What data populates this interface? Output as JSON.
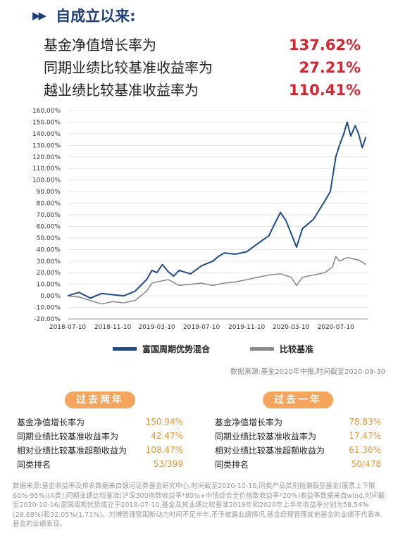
{
  "header": {
    "arrows": "▶▶",
    "title": "自成立以来:"
  },
  "metrics": [
    {
      "label": "基金净值增长率为",
      "value": "137.62%"
    },
    {
      "label": "同期业绩比较基准收益率为",
      "value": "27.21%"
    },
    {
      "label": "越业绩比较基准收益率为",
      "value": "110.41%"
    }
  ],
  "colors": {
    "fund": "#1e4b8c",
    "benchmark": "#8a8a8a",
    "accent_red": "#d8242f",
    "accent_orange": "#f4a55b"
  },
  "chart_data": {
    "type": "line",
    "title": "",
    "xlabel": "",
    "ylabel": "",
    "ylim": [
      -20,
      160
    ],
    "yticks": [
      "160.00%",
      "150.00%",
      "140.00%",
      "130.00%",
      "120.00%",
      "110.00%",
      "100.00%",
      "90.00%",
      "80.00%",
      "70.00%",
      "60.00%",
      "50.00%",
      "40.00%",
      "30.00%",
      "20.00%",
      "10.00%",
      "0.00%",
      "-10.00%",
      "-20.00%"
    ],
    "xticks": [
      "2018-07-10",
      "2018-11-10",
      "2019-03-10",
      "2019-07-10",
      "2019-11-10",
      "2020-03-10",
      "2020-07-10"
    ],
    "grid": true,
    "legend": "bottom",
    "series": [
      {
        "name": "富国周期优势混合",
        "x": [
          "2018-07-10",
          "2018-08-10",
          "2018-09-10",
          "2018-10-10",
          "2018-11-10",
          "2018-12-10",
          "2019-01-10",
          "2019-02-10",
          "2019-02-25",
          "2019-03-10",
          "2019-03-25",
          "2019-04-10",
          "2019-04-25",
          "2019-05-10",
          "2019-06-10",
          "2019-07-10",
          "2019-08-10",
          "2019-08-25",
          "2019-09-10",
          "2019-10-10",
          "2019-11-10",
          "2019-12-10",
          "2020-01-10",
          "2020-01-25",
          "2020-02-10",
          "2020-02-25",
          "2020-03-10",
          "2020-03-25",
          "2020-04-10",
          "2020-05-10",
          "2020-06-10",
          "2020-06-25",
          "2020-07-05",
          "2020-07-10",
          "2020-07-20",
          "2020-08-01",
          "2020-08-10",
          "2020-08-20",
          "2020-09-01",
          "2020-09-10",
          "2020-09-20",
          "2020-09-30"
        ],
        "values": [
          0,
          3,
          -2,
          2,
          1,
          0,
          4,
          14,
          22,
          20,
          27,
          21,
          17,
          22,
          19,
          26,
          30,
          34,
          37,
          36,
          38,
          45,
          52,
          62,
          72,
          65,
          54,
          42,
          58,
          66,
          82,
          90,
          110,
          120,
          130,
          140,
          150,
          138,
          147,
          140,
          128,
          137
        ]
      },
      {
        "name": "比较基准",
        "x": [
          "2018-07-10",
          "2018-08-10",
          "2018-09-10",
          "2018-10-10",
          "2018-11-10",
          "2018-12-10",
          "2019-01-10",
          "2019-02-10",
          "2019-02-25",
          "2019-03-10",
          "2019-04-10",
          "2019-05-10",
          "2019-06-10",
          "2019-07-10",
          "2019-08-10",
          "2019-09-10",
          "2019-10-10",
          "2019-11-10",
          "2019-12-10",
          "2020-01-10",
          "2020-02-10",
          "2020-03-10",
          "2020-03-25",
          "2020-04-10",
          "2020-05-10",
          "2020-06-10",
          "2020-07-01",
          "2020-07-10",
          "2020-07-20",
          "2020-08-10",
          "2020-09-10",
          "2020-09-30"
        ],
        "values": [
          0,
          -1,
          -4,
          -7,
          -5,
          -6,
          -4,
          4,
          11,
          12,
          14,
          9,
          10,
          11,
          9,
          11,
          12,
          14,
          16,
          18,
          19,
          16,
          9,
          16,
          18,
          20,
          25,
          34,
          30,
          33,
          31,
          27
        ]
      }
    ]
  },
  "source_note": "数据来源:基金2020年中报,时间截至2020-09-30",
  "panels": [
    {
      "badge": "过去两年",
      "rows": [
        {
          "label": "基金净值增长率为",
          "value": "150.94%"
        },
        {
          "label": "同期业绩比较基准收益率为",
          "value": "42.47%"
        },
        {
          "label": "相对业绩比较基准超额收益为",
          "value": "108.47%"
        },
        {
          "label": "同类排名",
          "value": "53/399"
        }
      ]
    },
    {
      "badge": "过去一年",
      "rows": [
        {
          "label": "基金净值增长率为",
          "value": "78.83%"
        },
        {
          "label": "同期业绩比较基准收益率为",
          "value": "17.47%"
        },
        {
          "label": "相对业绩比较基准超额收益为",
          "value": "61.36%"
        },
        {
          "label": "同类排名",
          "value": "50/478"
        }
      ]
    }
  ],
  "footnote": "数据来源:基金收益率及排名数据来自银河证券基金研究中心,时间截至2020-10-16,同类产品类别指偏股型基金(股票上下限60%-95%)(A类),同期业绩比较基准(沪深300指数收益率*80%+中债综合全价指数收益率*20%)收益率数据来自wind,时间截至2020-10-16;富国周期优势成立于2018-07-10,基金及其业绩比较基准2019年和2020年上半年收益率分别为58.54%(28.68%)和32.05%(1.71%)。刘博管理富国新动力时间不足半年,不予披露业绩情况,基金经理管理其他基金的业绩不代表本基金的业绩表现。"
}
